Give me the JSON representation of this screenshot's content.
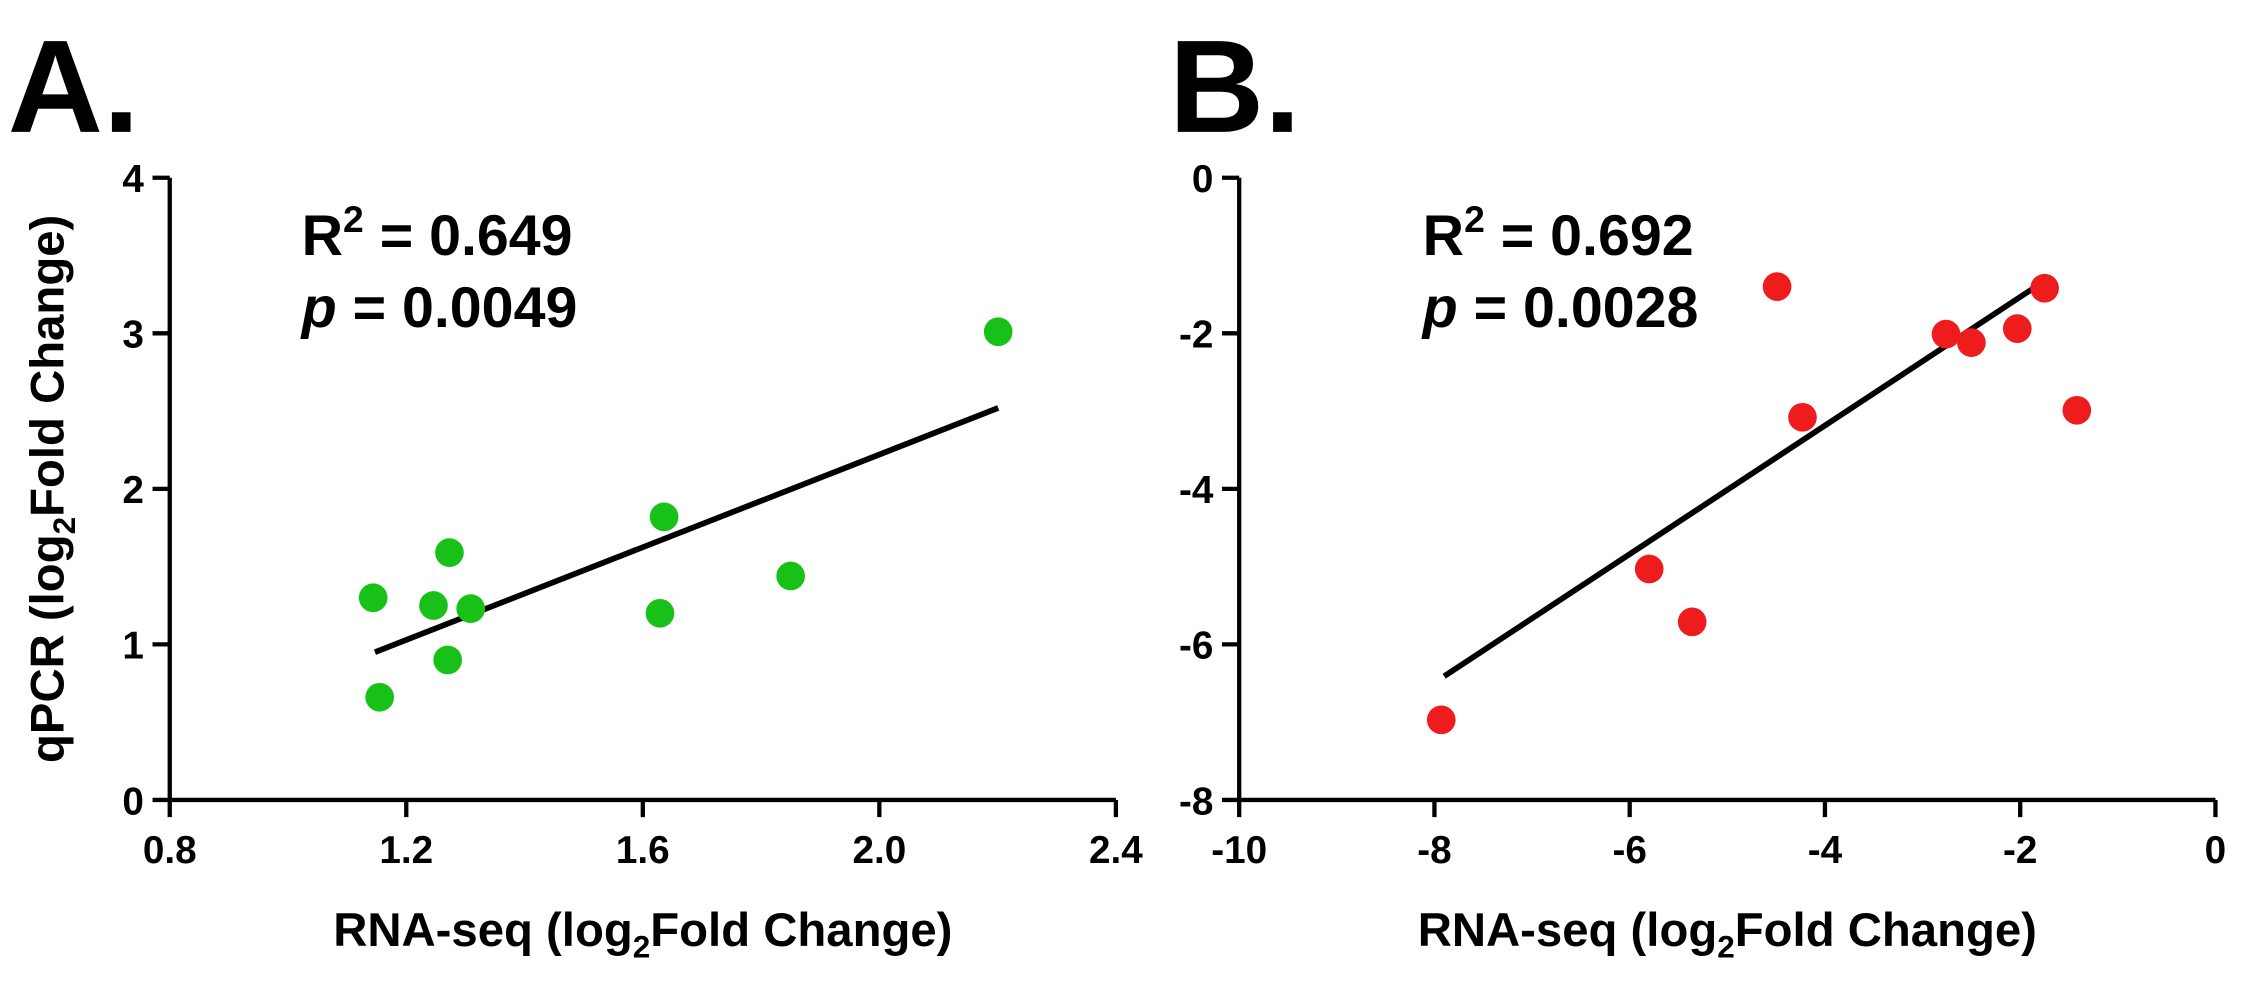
{
  "chart_data": [
    {
      "type": "scatter",
      "panel_label": "A.",
      "annotations": {
        "r2": [
          "R",
          "2",
          " = 0.649"
        ],
        "p": [
          "p",
          " = 0.0049"
        ]
      },
      "x_label": [
        "RNA-seq (log",
        "2",
        "Fold Change)"
      ],
      "y_label": [
        "qPCR (log",
        "2",
        "Fold Change)"
      ],
      "color": "#17c117",
      "x": [
        1.144,
        1.155,
        1.246,
        1.273,
        1.27,
        1.309,
        1.629,
        1.636,
        1.85,
        2.201
      ],
      "y": [
        1.3,
        0.66,
        1.25,
        1.59,
        0.9,
        1.23,
        1.2,
        1.82,
        1.44,
        3.01
      ],
      "fit_line": {
        "x": [
          1.147,
          2.201
        ],
        "y": [
          0.95,
          2.52
        ]
      },
      "xlim": [
        0.8,
        2.4
      ],
      "ylim": [
        0,
        4
      ],
      "xticks": [
        0.8,
        1.2,
        1.6,
        {
          "value": 2,
          "label": "2.0"
        },
        2.4
      ],
      "yticks": [
        0,
        1,
        2,
        3,
        4
      ]
    },
    {
      "type": "scatter",
      "panel_label": "B.",
      "annotations": {
        "r2": [
          "R",
          "2",
          " = 0.692"
        ],
        "p": [
          "p",
          " = 0.0028"
        ]
      },
      "x_label": [
        "RNA-seq (log",
        "2",
        "Fold Change)"
      ],
      "color": "#ee1c1c",
      "x": [
        -7.93,
        -5.8,
        -5.36,
        -4.49,
        -4.23,
        -2.76,
        -2.5,
        -2.03,
        -1.75,
        -1.42
      ],
      "y": [
        -6.97,
        -5.03,
        -5.71,
        -1.4,
        -3.08,
        -2.01,
        -2.12,
        -1.94,
        -1.42,
        -2.99
      ],
      "fit_line": {
        "x": [
          -7.9,
          -1.84
        ],
        "y": [
          -6.41,
          -1.4
        ]
      },
      "xlim": [
        -10,
        0
      ],
      "ylim": [
        -8,
        0
      ],
      "xticks": [
        -10,
        -8,
        -6,
        -4,
        -2,
        0
      ],
      "yticks": [
        -8,
        -6,
        -4,
        -2,
        0
      ]
    }
  ]
}
